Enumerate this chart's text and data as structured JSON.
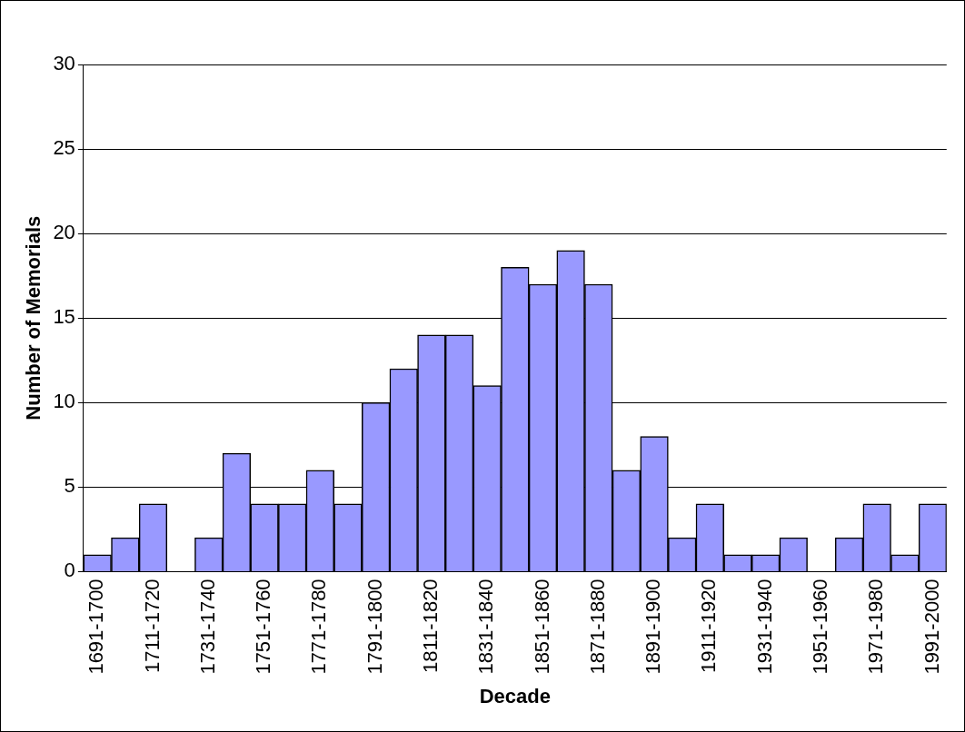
{
  "chart_data": {
    "type": "bar",
    "xlabel": "Decade",
    "ylabel": "Number of Memorials",
    "categories": [
      "1691-1700",
      null,
      "1711-1720",
      null,
      "1731-1740",
      null,
      "1751-1760",
      null,
      "1771-1780",
      null,
      "1791-1800",
      null,
      "1811-1820",
      null,
      "1831-1840",
      null,
      "1851-1860",
      null,
      "1871-1880",
      null,
      "1891-1900",
      null,
      "1911-1920",
      null,
      "1931-1940",
      null,
      "1951-1960",
      null,
      "1971-1980",
      null,
      "1991-2000"
    ],
    "values": [
      1,
      2,
      4,
      0,
      2,
      7,
      4,
      4,
      6,
      4,
      10,
      12,
      14,
      14,
      11,
      18,
      17,
      19,
      17,
      6,
      8,
      2,
      4,
      1,
      1,
      2,
      0,
      2,
      4,
      1,
      4
    ],
    "color": "#9999ff",
    "ylim": [
      0,
      30
    ],
    "yticks": [
      0,
      5,
      10,
      15,
      20,
      25,
      30
    ],
    "grid": "y",
    "legend": false
  }
}
